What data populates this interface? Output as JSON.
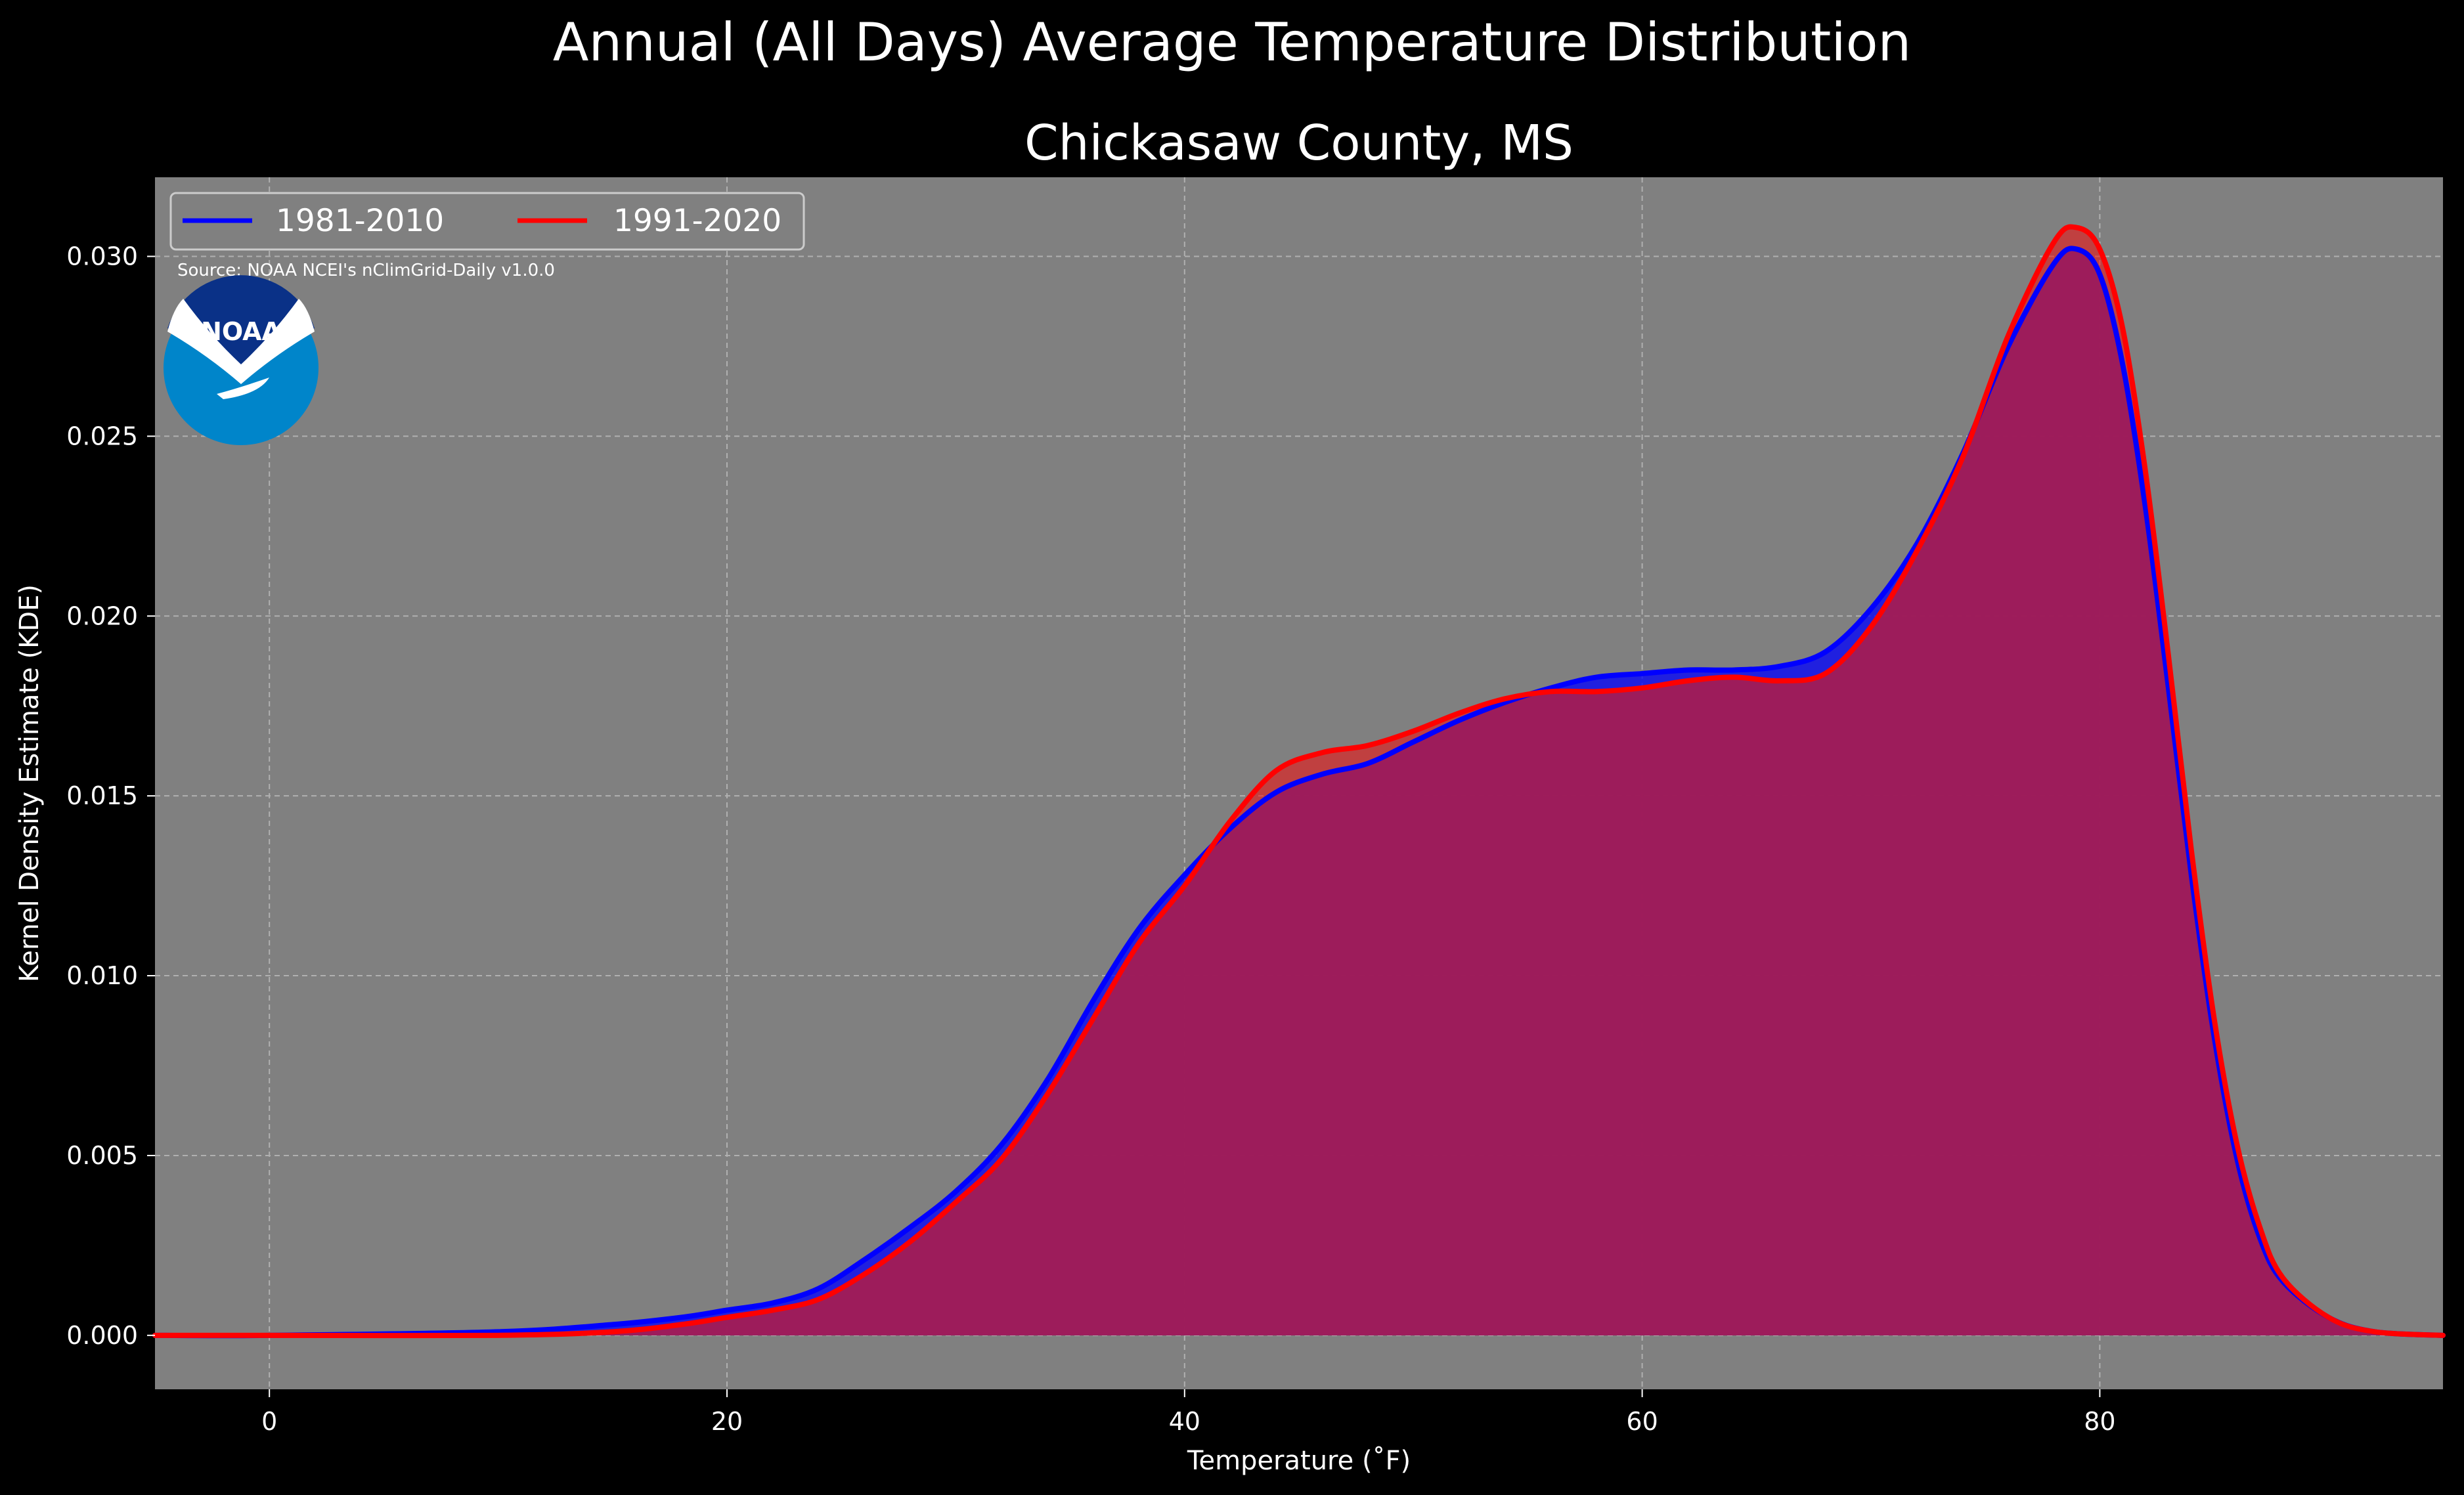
{
  "chart_data": {
    "type": "area",
    "suptitle": "Annual (All Days) Average Temperature Distribution",
    "title": "Chickasaw County, MS",
    "xlabel": "Temperature ($^\\circ$F)",
    "xlabel_display": "Temperature (˚F)",
    "ylabel": "Kernel Density Estimate (KDE)",
    "xlim": [
      -5,
      95
    ],
    "ylim": [
      -0.0015,
      0.0322
    ],
    "xticks": [
      0,
      20,
      40,
      60,
      80
    ],
    "xtick_labels": [
      "0",
      "20",
      "40",
      "60",
      "80"
    ],
    "yticks": [
      0.0,
      0.005,
      0.01,
      0.015,
      0.02,
      0.025,
      0.03
    ],
    "ytick_labels": [
      "0.000",
      "0.005",
      "0.010",
      "0.015",
      "0.020",
      "0.025",
      "0.030"
    ],
    "grid": true,
    "legend_position": "top-left",
    "source": "Source: NOAA NCEI's nClimGrid-Daily v1.0.0",
    "logo_text": "NOAA",
    "colors": {
      "background": "#000000",
      "plot_background": "#808080",
      "fill_overlap": "#9e1e5a",
      "series_1981": "#0000ff",
      "series_1991": "#ff0000",
      "noaa_dark": "#0a3187",
      "noaa_light": "#0085ca"
    },
    "x": [
      -5,
      0,
      10,
      15,
      18,
      20,
      22,
      24,
      26,
      28,
      30,
      32,
      34,
      36,
      38,
      40,
      42,
      44,
      46,
      48,
      50,
      52,
      54,
      56,
      58,
      60,
      62,
      64,
      66,
      68,
      70,
      72,
      74,
      76,
      78,
      79,
      80,
      81,
      82,
      83,
      84,
      85,
      86,
      87,
      88,
      90,
      92,
      95
    ],
    "series": [
      {
        "name": "1981-2010",
        "values": [
          0.0,
          0.0,
          0.0001,
          0.0003,
          0.0005,
          0.0007,
          0.0009,
          0.0013,
          0.0021,
          0.003,
          0.004,
          0.0053,
          0.0071,
          0.0093,
          0.0113,
          0.0128,
          0.0141,
          0.0151,
          0.0156,
          0.0159,
          0.0165,
          0.0171,
          0.0176,
          0.018,
          0.0183,
          0.0184,
          0.0185,
          0.0185,
          0.0186,
          0.019,
          0.0202,
          0.022,
          0.0245,
          0.0275,
          0.0298,
          0.0302,
          0.0295,
          0.027,
          0.023,
          0.018,
          0.0128,
          0.0083,
          0.0049,
          0.0027,
          0.0015,
          0.0005,
          0.0001,
          0.0
        ]
      },
      {
        "name": "1991-2020",
        "values": [
          0.0,
          0.0,
          0.0,
          0.0001,
          0.0003,
          0.0005,
          0.0007,
          0.001,
          0.0017,
          0.0026,
          0.0037,
          0.0049,
          0.0067,
          0.0088,
          0.0109,
          0.0125,
          0.0143,
          0.0157,
          0.0162,
          0.0164,
          0.0168,
          0.0173,
          0.0177,
          0.0179,
          0.0179,
          0.018,
          0.0182,
          0.0183,
          0.0182,
          0.0184,
          0.0197,
          0.0218,
          0.0244,
          0.0278,
          0.0304,
          0.0308,
          0.0302,
          0.028,
          0.024,
          0.0189,
          0.0135,
          0.0088,
          0.0053,
          0.003,
          0.0016,
          0.0005,
          0.0001,
          0.0
        ]
      }
    ]
  }
}
